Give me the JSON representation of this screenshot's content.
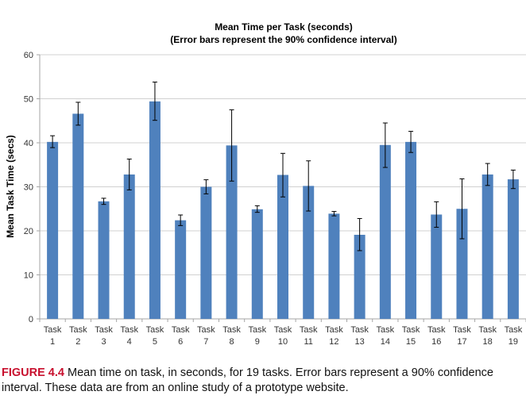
{
  "chart_data": {
    "type": "bar",
    "title_lines": [
      "Mean Time per Task (seconds)",
      "(Error bars represent the 90% confidence interval)"
    ],
    "xlabel": "",
    "ylabel": "Mean Task Time (secs)",
    "ylim": [
      0,
      60
    ],
    "yticks": [
      0,
      10,
      20,
      30,
      40,
      50,
      60
    ],
    "grid": true,
    "legend": "none",
    "bar_color": "#4f81bd",
    "categories": [
      [
        "Task",
        "1"
      ],
      [
        "Task",
        "2"
      ],
      [
        "Task",
        "3"
      ],
      [
        "Task",
        "4"
      ],
      [
        "Task",
        "5"
      ],
      [
        "Task",
        "6"
      ],
      [
        "Task",
        "7"
      ],
      [
        "Task",
        "8"
      ],
      [
        "Task",
        "9"
      ],
      [
        "Task",
        "10"
      ],
      [
        "Task",
        "11"
      ],
      [
        "Task",
        "12"
      ],
      [
        "Task",
        "13"
      ],
      [
        "Task",
        "14"
      ],
      [
        "Task",
        "15"
      ],
      [
        "Task",
        "16"
      ],
      [
        "Task",
        "17"
      ],
      [
        "Task",
        "18"
      ],
      [
        "Task",
        "19"
      ]
    ],
    "values": [
      40.2,
      46.6,
      26.7,
      32.8,
      49.4,
      22.4,
      30.0,
      39.4,
      24.9,
      32.7,
      30.2,
      23.9,
      19.1,
      39.5,
      40.2,
      23.7,
      25.0,
      32.8,
      31.7
    ],
    "error_low": [
      38.9,
      44.0,
      26.0,
      29.3,
      45.1,
      21.2,
      28.4,
      31.3,
      24.2,
      27.7,
      24.5,
      23.4,
      15.5,
      34.4,
      37.8,
      20.8,
      18.2,
      30.3,
      29.6
    ],
    "error_high": [
      41.6,
      49.2,
      27.4,
      36.3,
      53.8,
      23.6,
      31.6,
      47.5,
      25.7,
      37.6,
      35.9,
      24.4,
      22.8,
      44.5,
      42.6,
      26.6,
      31.8,
      35.3,
      33.8
    ]
  },
  "caption": {
    "label": "FIGURE 4.4",
    "text": " Mean time on task, in seconds, for 19 tasks. Error bars represent a 90% confidence interval. These data are from an online study of a prototype website."
  }
}
